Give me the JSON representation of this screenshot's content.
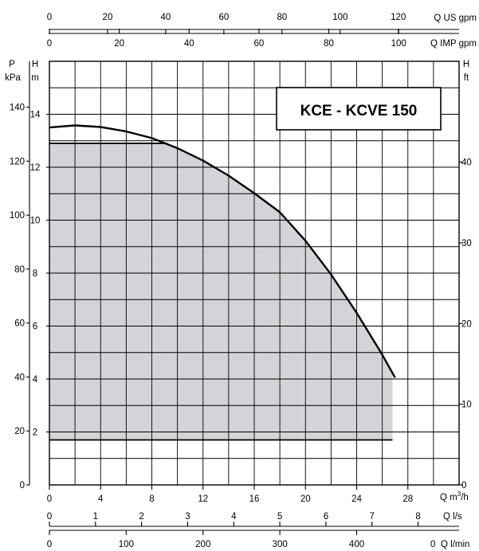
{
  "chart_data": {
    "type": "line",
    "title": "KCE - KCVE 150",
    "main_axes": {
      "x": {
        "label": "Q m³/h",
        "label_text": "Q m",
        "label_sup": "3",
        "label_tail": "/h",
        "range": [
          0,
          32
        ],
        "ticks": [
          0,
          4,
          8,
          12,
          16,
          20,
          24,
          28
        ]
      },
      "y": {
        "label": "H m",
        "label_top": "H",
        "label_bottom": "m",
        "range": [
          0,
          16
        ],
        "ticks": [
          2,
          4,
          6,
          8,
          10,
          12,
          14
        ]
      }
    },
    "secondary_axes": {
      "top_us": {
        "label": "Q US gpm",
        "range": [
          0,
          140.9
        ],
        "ticks": [
          0,
          20,
          40,
          60,
          80,
          100,
          120
        ]
      },
      "top_imp": {
        "label": "Q IMP gpm",
        "range": [
          0,
          117.3
        ],
        "ticks": [
          0,
          20,
          40,
          60,
          80,
          100
        ]
      },
      "bottom_ls": {
        "label": "Q l/s",
        "range": [
          0,
          8.89
        ],
        "ticks": [
          0,
          1,
          2,
          3,
          4,
          5,
          6,
          7,
          8
        ]
      },
      "bottom_lmin": {
        "label": "Q l/min",
        "range": [
          0,
          533.3
        ],
        "ticks": [
          0,
          100,
          200,
          300,
          400
        ],
        "end_label": "0"
      },
      "left_kpa": {
        "label": "P kPa",
        "label_top": "P",
        "label_bottom": "kPa",
        "range": [
          0,
          157
        ],
        "ticks": [
          0,
          20,
          40,
          60,
          80,
          100,
          120,
          140
        ]
      },
      "right_ft": {
        "label": "H ft",
        "label_top": "H",
        "label_bottom": "ft",
        "range": [
          0,
          52.5
        ],
        "ticks": [
          0,
          10,
          20,
          30,
          40
        ]
      }
    },
    "series": [
      {
        "points": [
          [
            0,
            13.5
          ],
          [
            2,
            13.58
          ],
          [
            4,
            13.52
          ],
          [
            6,
            13.35
          ],
          [
            8,
            13.1
          ],
          [
            10,
            12.72
          ],
          [
            12,
            12.25
          ],
          [
            14,
            11.68
          ],
          [
            16,
            11.02
          ],
          [
            18,
            10.3
          ],
          [
            20,
            9.22
          ],
          [
            22,
            7.95
          ],
          [
            24,
            6.5
          ],
          [
            26,
            4.92
          ],
          [
            27,
            4.05
          ]
        ]
      }
    ],
    "operating_area": {
      "x_max": 26.8,
      "h_min": 1.7,
      "h_max": 12.9
    },
    "grid": true
  }
}
